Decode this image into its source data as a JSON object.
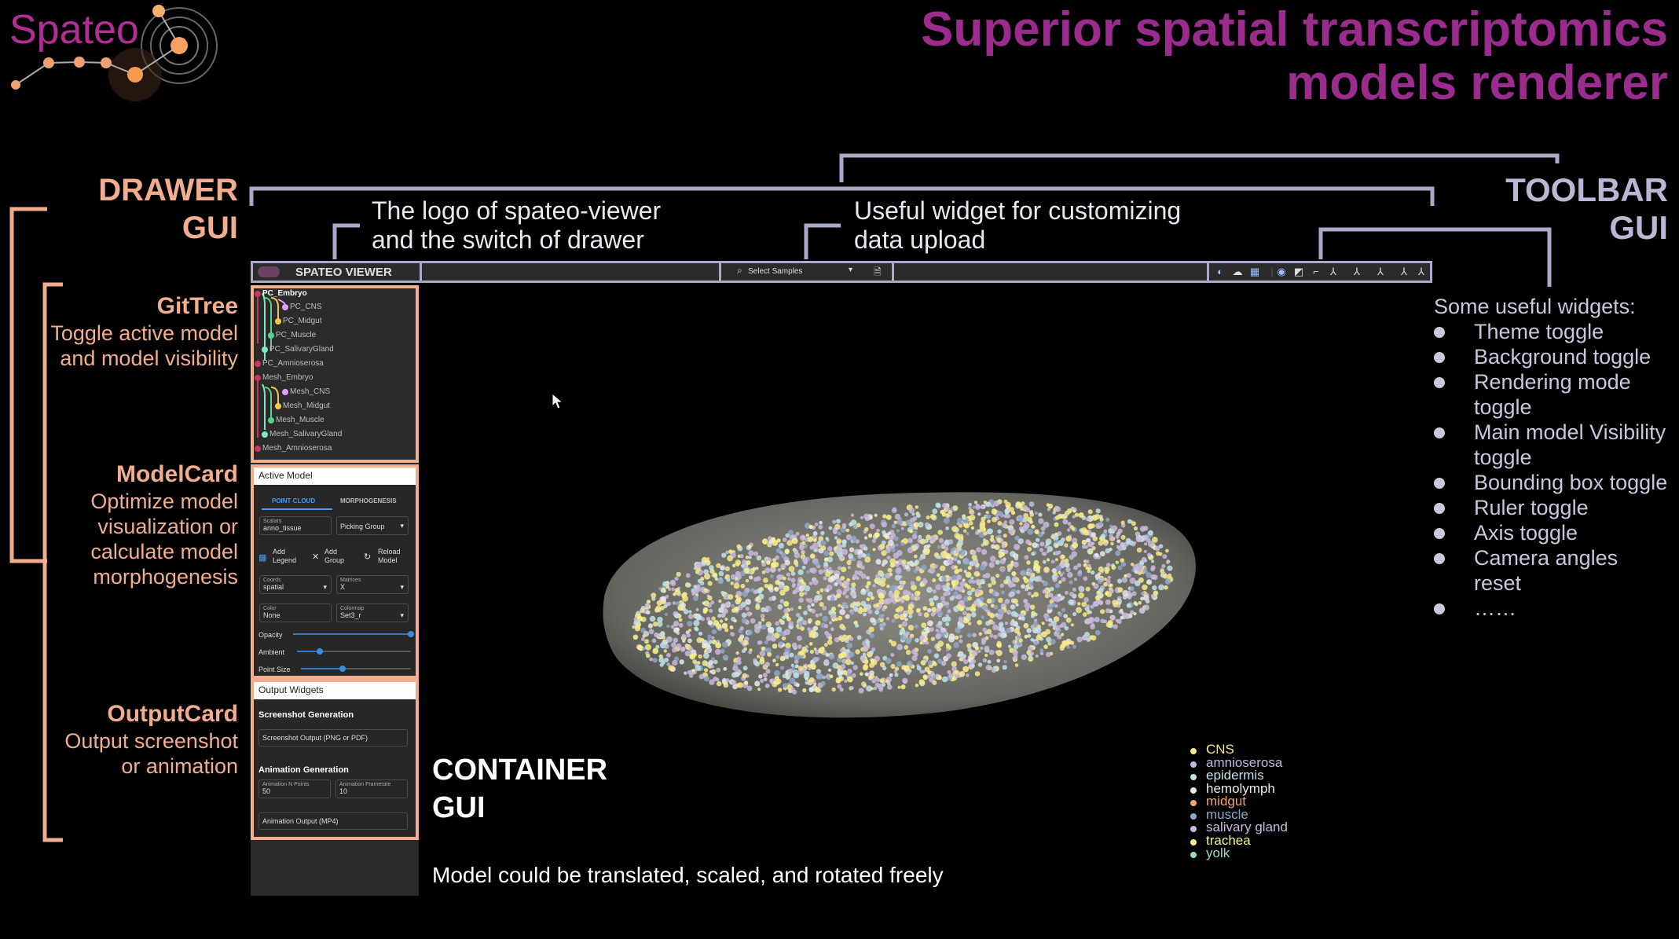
{
  "app": {
    "logo_text": "Spateo",
    "title_line1": "Superior spatial transcriptomics",
    "title_line2": "models renderer"
  },
  "sections": {
    "drawer_gui": {
      "line1": "DRAWER",
      "line2": "GUI"
    },
    "gittree": {
      "title": "GitTree",
      "line1": "Toggle active model",
      "line2": "and model visibility"
    },
    "modelcard": {
      "title": "ModelCard",
      "line1": "Optimize model",
      "line2": "visualization or",
      "line3": "calculate model",
      "line4": "morphogenesis"
    },
    "outputcard": {
      "title": "OutputCard",
      "line1": "Output screenshot",
      "line2": "or animation"
    },
    "toolbar_gui": {
      "line1": "TOOLBAR",
      "line2": "GUI"
    },
    "container_gui": {
      "line1": "CONTAINER",
      "line2": "GUI"
    }
  },
  "annotations": {
    "logo_switch": {
      "line1": "The logo of spateo-viewer",
      "line2": "and the switch of drawer"
    },
    "upload": {
      "line1": "Useful widget for customizing",
      "line2": "data upload"
    },
    "container_note": "Model could be translated, scaled, and rotated freely"
  },
  "widgets": {
    "heading": "Some useful widgets:",
    "items": [
      "Theme toggle",
      "Background toggle",
      "Rendering mode toggle",
      "Main model Visibility toggle",
      "Bounding box toggle",
      "Ruler toggle",
      "Axis toggle",
      "Camera angles reset",
      "……"
    ]
  },
  "toolbar": {
    "app_name": "SPATEO VIEWER",
    "select_samples": "Select Samples"
  },
  "gittree": {
    "items": [
      "PC_Embryo",
      "PC_CNS",
      "PC_Midgut",
      "PC_Muscle",
      "PC_SalivaryGland",
      "PC_Amnioserosa",
      "Mesh_Embryo",
      "Mesh_CNS",
      "Mesh_Midgut",
      "Mesh_Muscle",
      "Mesh_SalivaryGland",
      "Mesh_Amnioserosa"
    ]
  },
  "modelcard": {
    "header": "Active Model",
    "tab_point_cloud": "POINT CLOUD",
    "tab_morphogenesis": "MORPHOGENESIS",
    "scalars_label": "Scalars",
    "scalars_value": "anno_tissue",
    "picking_group": "Picking Group",
    "add_legend_line1": "Add",
    "add_legend_line2": "Legend",
    "add_group_line1": "Add",
    "add_group_line2": "Group",
    "reload_model_line1": "Reload",
    "reload_model_line2": "Model",
    "coords_label": "Coords",
    "coords_value": "spatial",
    "matrices_label": "Matrices",
    "matrices_value": "X",
    "color_label": "Color",
    "color_value": "None",
    "colormap_label": "Colormap",
    "colormap_value": "Set3_r",
    "opacity_label": "Opacity",
    "ambient_label": "Ambient",
    "point_size_label": "Point Size",
    "opacity_level": 1.0,
    "ambient_level": 0.2,
    "point_size_level": 0.38
  },
  "outputcard": {
    "header": "Output Widgets",
    "screenshot_title": "Screenshot Generation",
    "screenshot_button": "Screenshot Output (PNG or PDF)",
    "animation_title": "Animation Generation",
    "anim_points_label": "Animation N Points",
    "anim_points_value": "50",
    "anim_framerate_label": "Animation Framerate",
    "anim_framerate_value": "10",
    "animation_button": "Animation Output (MP4)"
  },
  "legend": {
    "items": [
      {
        "label": "CNS",
        "color": "#f7e98a"
      },
      {
        "label": "amnioserosa",
        "color": "#c7b7de"
      },
      {
        "label": "epidermis",
        "color": "#bfe3e8"
      },
      {
        "label": "hemolymph",
        "color": "#e9e9ea"
      },
      {
        "label": "midgut",
        "color": "#f2a46e"
      },
      {
        "label": "muscle",
        "color": "#8fa7c9"
      },
      {
        "label": "salivary gland",
        "color": "#c9b9dc"
      },
      {
        "label": "trachea",
        "color": "#fbf58e"
      },
      {
        "label": "yolk",
        "color": "#9ed7c7"
      }
    ]
  },
  "colors": {
    "title": "#9b2c8e",
    "salmon": "#f1ad8e",
    "lavender": "#a9a9c9",
    "toolbar_icon": "#9dc0ff",
    "slider": "#2e7ad1"
  }
}
